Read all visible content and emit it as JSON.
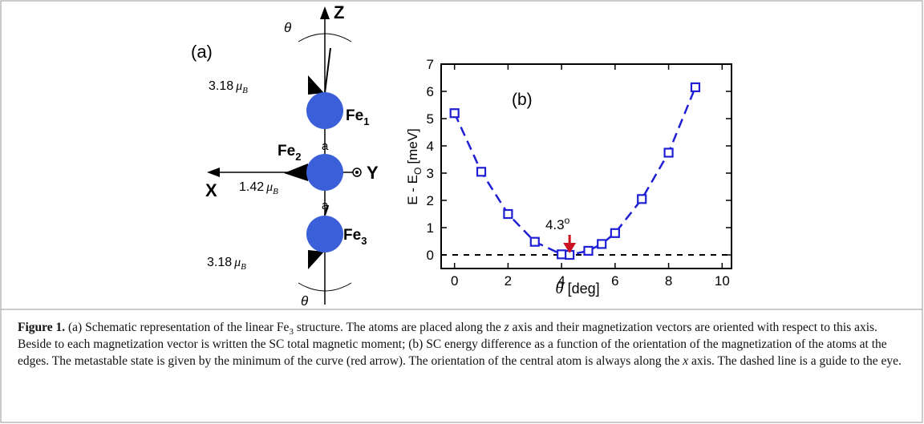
{
  "panel_a": {
    "label": "(a)",
    "axes": {
      "z": "Z",
      "x": "X",
      "y": "Y"
    },
    "angle": "θ",
    "atoms": [
      {
        "label": "Fe",
        "sub": "1"
      },
      {
        "label": "Fe",
        "sub": "2"
      },
      {
        "label": "Fe",
        "sub": "3"
      }
    ],
    "spacing": "a",
    "moments": [
      {
        "value": "3.18",
        "unit": "μ",
        "sub": "B"
      },
      {
        "value": "1.42",
        "unit": "μ",
        "sub": "B"
      },
      {
        "value": "3.18",
        "unit": "μ",
        "sub": "B"
      }
    ]
  },
  "chart_data": {
    "type": "line",
    "panel_label": "(b)",
    "x": [
      0,
      1,
      2,
      3,
      4,
      4.3,
      5,
      5.5,
      6,
      7,
      8,
      9
    ],
    "series": [
      {
        "color": "#1f1fd6",
        "values": [
          5.2,
          3.05,
          1.5,
          0.48,
          0.02,
          0,
          0.15,
          0.4,
          0.8,
          2.05,
          3.75,
          6.15
        ]
      }
    ],
    "xlim": [
      -0.5,
      10.35
    ],
    "ylim": [
      -0.5,
      7
    ],
    "xticks": [
      0,
      2,
      4,
      6,
      8,
      10
    ],
    "yticks": [
      0,
      1,
      2,
      3,
      4,
      5,
      6,
      7
    ],
    "xlabel": {
      "symbol": "θ",
      "unit": "[deg]"
    },
    "ylabel": {
      "text": "E - E",
      "sub": "O",
      "unit": "[meV]"
    },
    "hline": 0,
    "annotation": {
      "text": "4.3",
      "sup": "o",
      "x": 4.3,
      "color": "#cc1122"
    }
  },
  "caption": {
    "label": "Figure 1.",
    "parts": [
      {
        "text": "(a) Schematic representation of the linear Fe"
      },
      {
        "text": "3",
        "style": "sub"
      },
      {
        "text": " structure. The atoms are placed along the "
      },
      {
        "text": "z",
        "style": "i"
      },
      {
        "text": " axis and their magnetization vectors are oriented with respect to this axis. Beside to each magnetization vector is written the SC total magnetic moment; (b) SC energy difference as a function of the orientation of the magnetization of the atoms at the edges. The metastable state is given by the minimum of the curve  (red arrow). The orientation of the central atom is always along the "
      },
      {
        "text": "x",
        "style": "i"
      },
      {
        "text": " axis. The dashed line is a guide to the eye."
      }
    ]
  }
}
